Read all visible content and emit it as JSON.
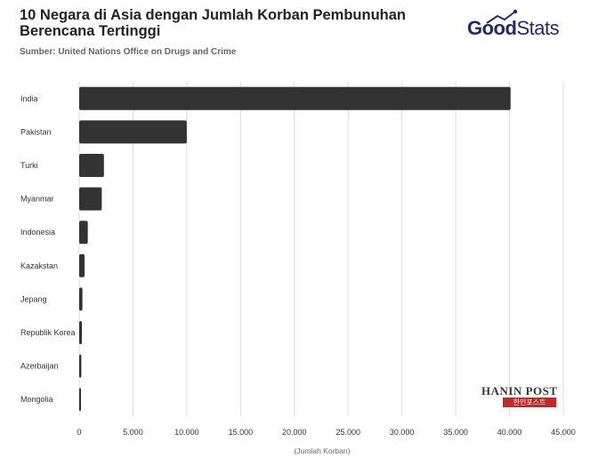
{
  "header": {
    "title": "10 Negara di Asia dengan Jumlah Korban Pembunuhan Berencana Tertinggi",
    "subtitle": "Sumber: United Nations Office on Drugs and Crime"
  },
  "logo": {
    "part1": "Good",
    "part2": "Stats",
    "color": "#1e2a6e"
  },
  "watermark": {
    "top": "HANIN POST",
    "bottom": "한인포스트",
    "color": "#c62828"
  },
  "colors": {
    "bar": "#333333",
    "grid": "#dddddd",
    "label": "#333333",
    "axis_label": "#666666"
  },
  "chart_data": {
    "type": "bar",
    "orientation": "horizontal",
    "title": "10 Negara di Asia dengan Jumlah Korban Pembunuhan Berencana Tertinggi",
    "categories": [
      "India",
      "Pakistan",
      "Turki",
      "Myanmar",
      "Indonesia",
      "Kazakstan",
      "Jepang",
      "Republik Korea",
      "Azerbaijan",
      "Mongolia"
    ],
    "values": [
      40100,
      10000,
      2300,
      2100,
      800,
      500,
      300,
      250,
      200,
      150
    ],
    "xlabel": "(Jumlah Korban)",
    "xlim": [
      0,
      45000
    ],
    "xticks": [
      0,
      5000,
      10000,
      15000,
      20000,
      25000,
      30000,
      35000,
      40000,
      45000
    ],
    "xtick_labels": [
      "0",
      "5.000",
      "10.000",
      "15.000",
      "20.000",
      "25.000",
      "30.000",
      "35.000",
      "40.000",
      "45.000"
    ],
    "grid": true,
    "legend": "none"
  }
}
